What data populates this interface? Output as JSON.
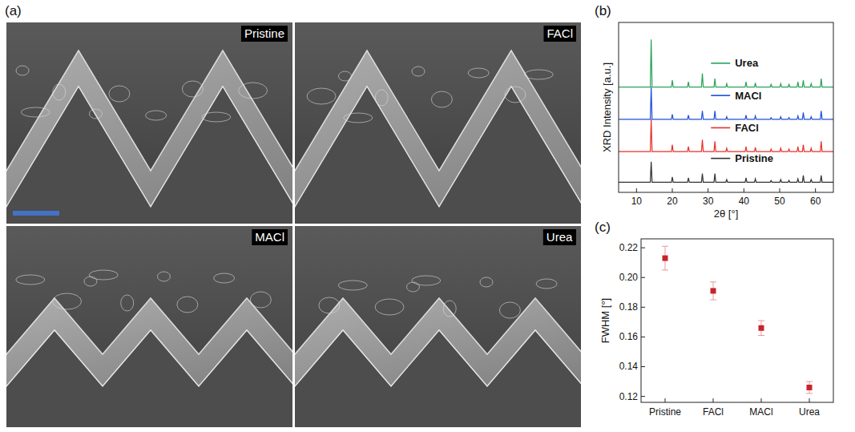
{
  "panels": {
    "a": {
      "label": "(a)",
      "images": [
        "Pristine",
        "FACl",
        "MACl",
        "Urea"
      ]
    },
    "b": {
      "label": "(b)"
    },
    "c": {
      "label": "(c)"
    }
  },
  "chart_data": [
    {
      "type": "line",
      "x_label": "2θ [°]",
      "y_label": "XRD Intensity [a.u.]",
      "x": [
        5,
        13.85,
        14.1,
        14.35,
        19.75,
        20.0,
        20.25,
        24.25,
        24.5,
        24.75,
        28.15,
        28.4,
        28.65,
        31.65,
        31.9,
        32.15,
        34.95,
        35.2,
        35.45,
        40.35,
        40.6,
        40.85,
        42.95,
        43.2,
        43.45,
        47.35,
        47.6,
        47.85,
        50.05,
        50.3,
        50.55,
        52.35,
        52.6,
        52.85,
        54.85,
        55.1,
        55.35,
        56.35,
        56.6,
        56.85,
        58.55,
        58.8,
        59.05,
        61.35,
        61.6,
        61.85,
        65
      ],
      "xlim": [
        5,
        65
      ],
      "xticks": [
        10,
        20,
        30,
        40,
        50,
        60
      ],
      "ylim": [
        0,
        100
      ],
      "tick_labels": "x",
      "grid": false,
      "legend": "right",
      "series": [
        {
          "name": "Pristine",
          "color": "#333333",
          "values": [
            6,
            6,
            18,
            6,
            6,
            9,
            6,
            6,
            8.5,
            6,
            6,
            11,
            6,
            6,
            11,
            6,
            6,
            7.5,
            6,
            6,
            8.5,
            6,
            6,
            8,
            6,
            6,
            7,
            6,
            6,
            7.5,
            6,
            6,
            7,
            6,
            6,
            8,
            6,
            6,
            10,
            6,
            6,
            7.5,
            6,
            6,
            10,
            6,
            6
          ]
        },
        {
          "name": "FACl",
          "color": "#e8302a",
          "values": [
            24,
            24,
            43,
            24,
            24,
            28,
            24,
            24,
            27,
            24,
            24,
            31,
            24,
            24,
            30,
            24,
            24,
            26,
            24,
            24,
            27,
            24,
            24,
            26.5,
            24,
            24,
            25.5,
            24,
            24,
            26,
            24,
            24,
            25.5,
            24,
            24,
            27,
            24,
            24,
            28,
            24,
            24,
            26,
            24,
            24,
            30,
            24,
            24
          ]
        },
        {
          "name": "MACl",
          "color": "#1f4fd8",
          "values": [
            43,
            43,
            62,
            43,
            43,
            46,
            43,
            43,
            45.5,
            43,
            43,
            48,
            43,
            43,
            48,
            43,
            43,
            44.5,
            43,
            43,
            45.5,
            43,
            43,
            45,
            43,
            43,
            44,
            43,
            43,
            44.5,
            43,
            43,
            44,
            43,
            43,
            45,
            43,
            43,
            47,
            43,
            43,
            44.5,
            43,
            43,
            48,
            43,
            43
          ]
        },
        {
          "name": "Urea",
          "color": "#27a35a",
          "values": [
            62,
            62,
            90,
            62,
            62,
            66,
            62,
            62,
            65,
            62,
            62,
            70,
            62,
            62,
            67,
            62,
            62,
            64,
            62,
            62,
            65,
            62,
            62,
            64.5,
            62,
            62,
            63.5,
            62,
            62,
            64,
            62,
            62,
            63.5,
            62,
            62,
            65,
            62,
            62,
            66,
            62,
            62,
            64,
            62,
            62,
            67,
            62,
            62
          ]
        }
      ]
    },
    {
      "type": "scatter",
      "y_label": "FWHM [°]",
      "categories": [
        "Pristine",
        "FACl",
        "MACl",
        "Urea"
      ],
      "values": [
        0.213,
        0.191,
        0.166,
        0.126
      ],
      "errors": [
        0.008,
        0.006,
        0.005,
        0.004
      ],
      "ylim": [
        0.116,
        0.226
      ],
      "yticks": [
        0.12,
        0.14,
        0.16,
        0.18,
        {
          "value": 0.2,
          "label": "0.20"
        },
        0.22
      ],
      "color": "#c8232c",
      "marker": "square",
      "grid": false
    }
  ]
}
